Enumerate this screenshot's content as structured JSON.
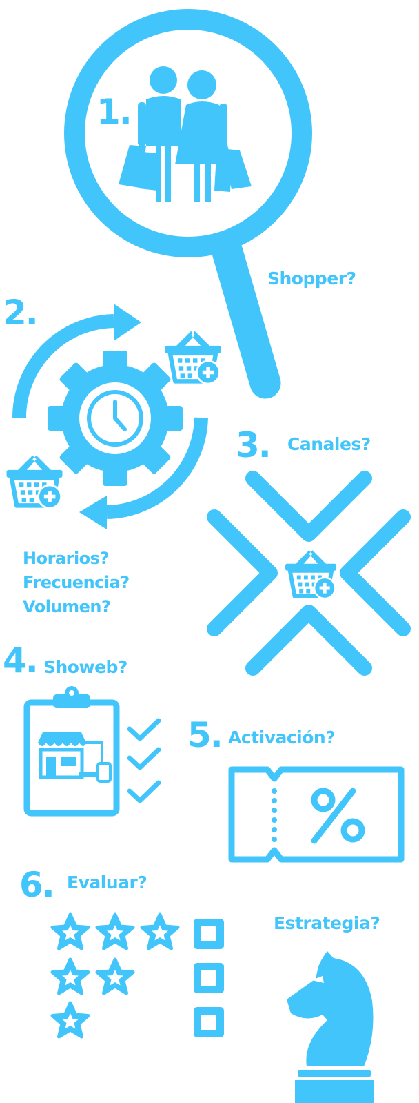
{
  "accent_color": "#42c5fb",
  "steps": [
    {
      "number": "1.",
      "question": "Shopper?",
      "icon": "magnifier-couple-shopping-icon"
    },
    {
      "number": "2.",
      "questions": [
        "Horarios?",
        "Frecuencia?",
        "Volumen?"
      ],
      "icon": "gear-clock-cycle-icon"
    },
    {
      "number": "3.",
      "question": "Canales?",
      "icon": "cross-arrows-basket-icon"
    },
    {
      "number": "4.",
      "question": "Showeb?",
      "icon": "clipboard-store-checklist-icon"
    },
    {
      "number": "5.",
      "question": "Activación?",
      "icon": "coupon-percent-icon"
    },
    {
      "number": "6.",
      "question": "Evaluar?",
      "icon": "star-rating-checkboxes-icon"
    }
  ],
  "strategy": {
    "question": "Estrategia?",
    "icon": "chess-knight-icon"
  }
}
